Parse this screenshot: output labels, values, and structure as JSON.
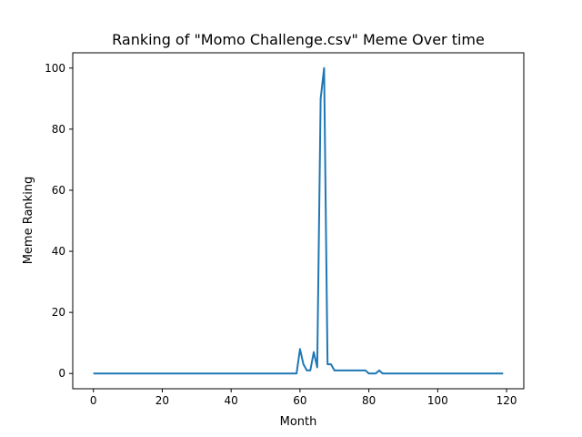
{
  "chart_data": {
    "type": "line",
    "title": "Ranking of \"Momo Challenge.csv\" Meme Over time",
    "xlabel": "Month",
    "ylabel": "Meme Ranking",
    "xlim": [
      -6,
      125
    ],
    "ylim": [
      -5,
      105
    ],
    "xticks": [
      0,
      20,
      40,
      60,
      80,
      100,
      120
    ],
    "yticks": [
      0,
      20,
      40,
      60,
      80,
      100
    ],
    "grid": false,
    "legend": "none",
    "series": [
      {
        "color": "#1f77b4",
        "points": [
          [
            0,
            0
          ],
          [
            10,
            0
          ],
          [
            20,
            0
          ],
          [
            30,
            0
          ],
          [
            40,
            0
          ],
          [
            50,
            0
          ],
          [
            59,
            0
          ],
          [
            60,
            8
          ],
          [
            61,
            3
          ],
          [
            62,
            1
          ],
          [
            63,
            1
          ],
          [
            64,
            7
          ],
          [
            65,
            2
          ],
          [
            66,
            90
          ],
          [
            67,
            100
          ],
          [
            68,
            3
          ],
          [
            69,
            3
          ],
          [
            70,
            1
          ],
          [
            75,
            1
          ],
          [
            79,
            1
          ],
          [
            80,
            0
          ],
          [
            82,
            0
          ],
          [
            83,
            1
          ],
          [
            84,
            0
          ],
          [
            90,
            0
          ],
          [
            100,
            0
          ],
          [
            110,
            0
          ],
          [
            119,
            0
          ]
        ]
      }
    ]
  }
}
